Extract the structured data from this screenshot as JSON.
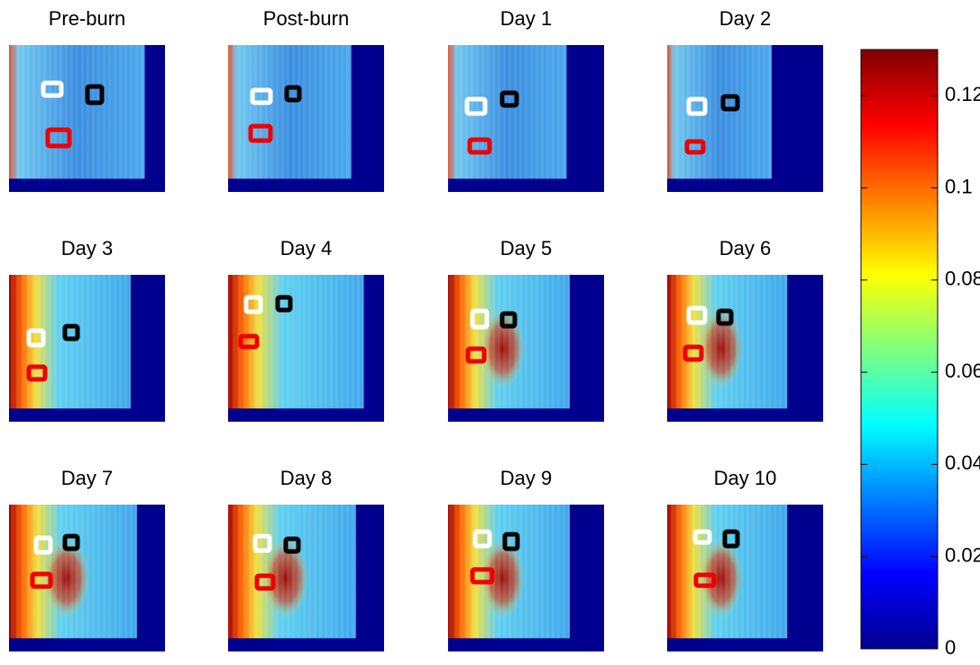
{
  "chart_data": {
    "type": "heatmap",
    "categories": [
      "Pre-burn",
      "Post-burn",
      "Day 1",
      "Day 2",
      "Day 3",
      "Day 4",
      "Day 5",
      "Day 6",
      "Day 7",
      "Day 8",
      "Day 9",
      "Day 10"
    ],
    "clim": [
      0,
      0.13
    ],
    "cticks": [
      0,
      0.02,
      0.04,
      0.06,
      0.08,
      0.1,
      0.12
    ],
    "colormap": "jet"
  }
}
